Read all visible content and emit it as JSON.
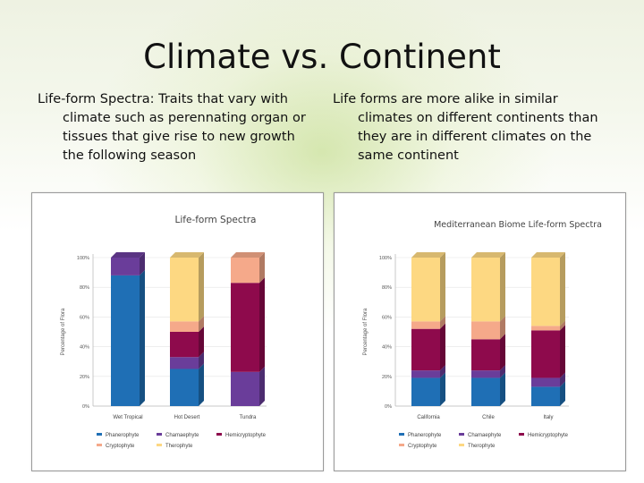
{
  "slide": {
    "title": "Climate vs. Continent",
    "bullets": [
      {
        "first": "Life-form Spectra: Traits that vary with",
        "rest": "climate such as perennating organ or tissues that give rise to new growth the following season"
      },
      {
        "first": "Life forms are more alike in similar",
        "rest": "climates on different continents than they are in different climates on the same continent"
      }
    ]
  },
  "colors": {
    "Phanerophyte": "#1f6fb5",
    "Chamaephyte": "#6a3d9a",
    "Hemicryptophyte": "#8e0a4c",
    "Cryptophyte": "#f5a98a",
    "Therophyte": "#fdd882"
  },
  "chart_data": [
    {
      "type": "bar",
      "stacked": true,
      "title": "Life-form Spectra",
      "ylabel": "Percentage of Flora",
      "ylim": [
        0,
        100
      ],
      "yticks": [
        "0%",
        "20%",
        "40%",
        "60%",
        "80%",
        "100%"
      ],
      "categories": [
        "Wet Tropical",
        "Hot Desert",
        "Tundra"
      ],
      "series": [
        {
          "name": "Phanerophyte",
          "values": [
            88,
            25,
            0
          ]
        },
        {
          "name": "Chamaephyte",
          "values": [
            12,
            8,
            23
          ]
        },
        {
          "name": "Hemicryptophyte",
          "values": [
            0,
            17,
            60
          ]
        },
        {
          "name": "Cryptophyte",
          "values": [
            0,
            7,
            17
          ]
        },
        {
          "name": "Therophyte",
          "values": [
            0,
            43,
            0
          ]
        }
      ],
      "legend": "bottom"
    },
    {
      "type": "bar",
      "stacked": true,
      "title": "Mediterranean Biome Life-form Spectra",
      "ylabel": "Percentage of Flora",
      "ylim": [
        0,
        100
      ],
      "yticks": [
        "0%",
        "20%",
        "40%",
        "60%",
        "80%",
        "100%"
      ],
      "categories": [
        "California",
        "Chile",
        "Italy"
      ],
      "series": [
        {
          "name": "Phanerophyte",
          "values": [
            19,
            19,
            13
          ]
        },
        {
          "name": "Chamaephyte",
          "values": [
            5,
            5,
            6
          ]
        },
        {
          "name": "Hemicryptophyte",
          "values": [
            28,
            21,
            32
          ]
        },
        {
          "name": "Cryptophyte",
          "values": [
            5,
            12,
            3
          ]
        },
        {
          "name": "Therophyte",
          "values": [
            43,
            43,
            46
          ]
        }
      ],
      "legend": "bottom"
    }
  ]
}
